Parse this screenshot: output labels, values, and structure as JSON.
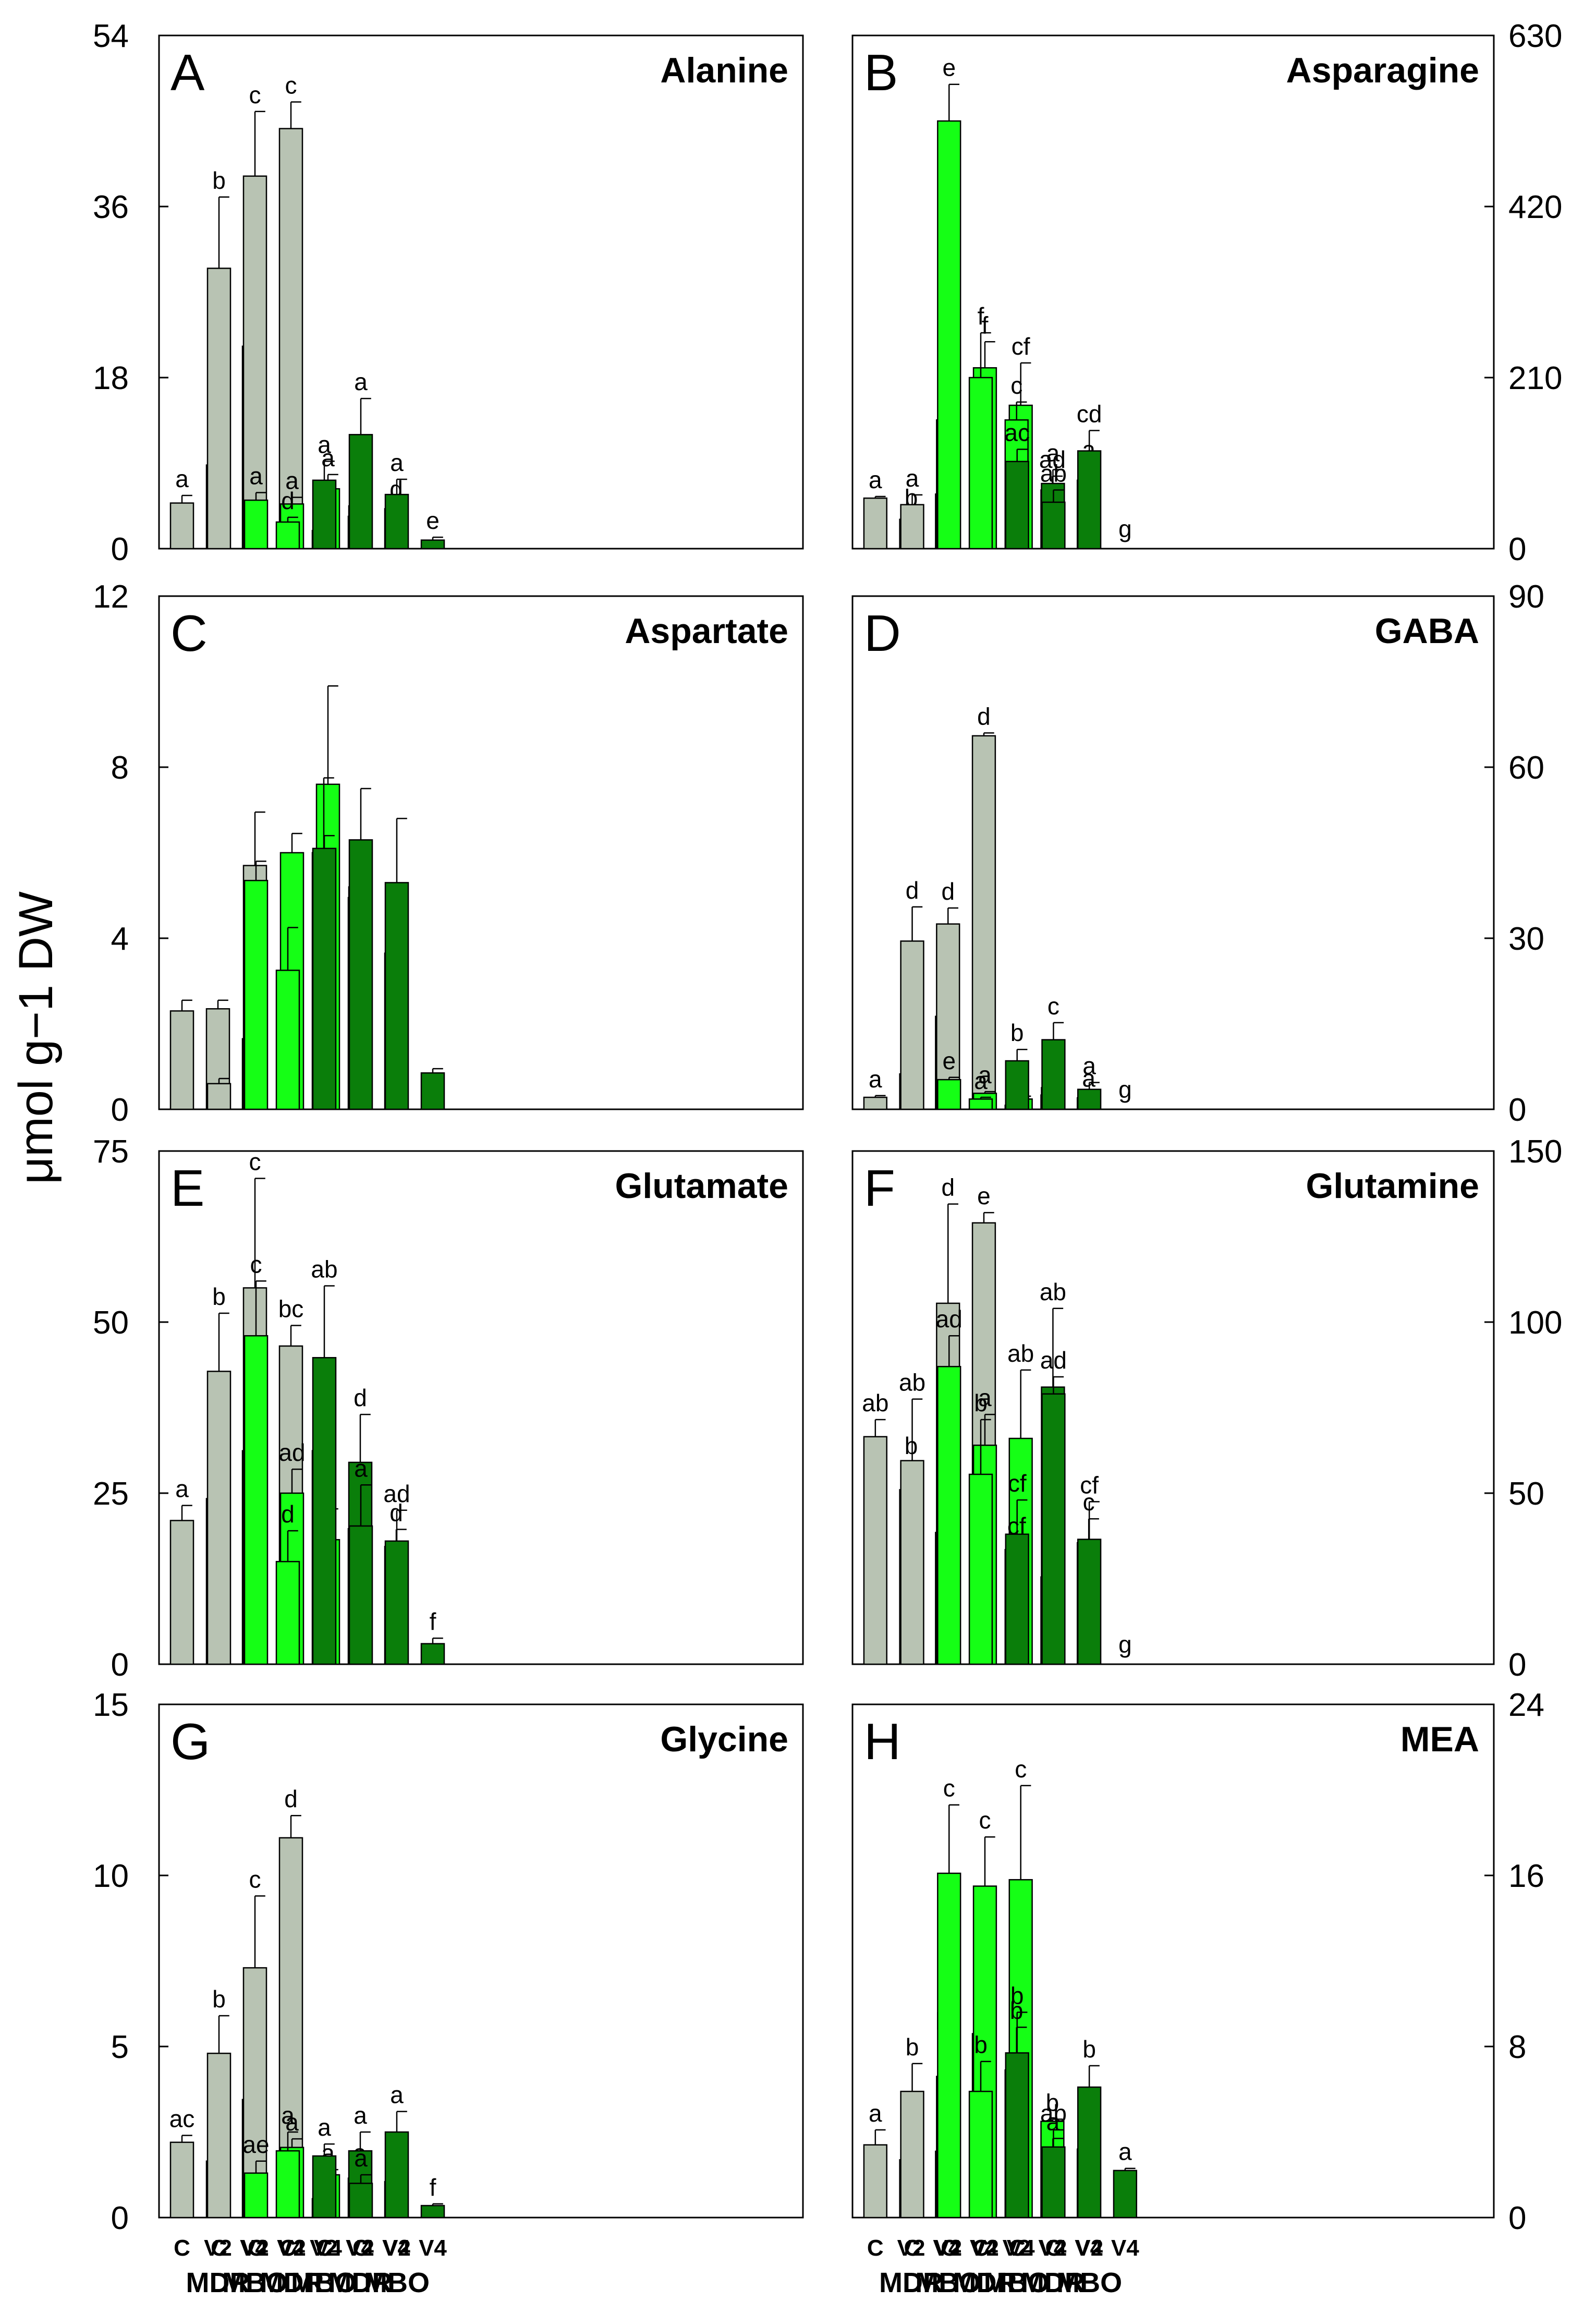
{
  "ylabel": "μmol g−1 DW",
  "colors": {
    "grey": "#b8c3b3",
    "light": "#15ff15",
    "dark": "#0a7e0a"
  },
  "category_groups": [
    {
      "labels": [
        "C",
        "V2",
        "V4"
      ],
      "group": "MDR"
    },
    {
      "labels": [
        "C",
        "V2",
        "V4"
      ],
      "group": "MBO"
    },
    {
      "labels": [
        "C",
        "V2",
        "V4"
      ],
      "group": "MDR"
    },
    {
      "labels": [
        "C",
        "V2",
        "V4"
      ],
      "group": "MBO"
    },
    {
      "labels": [
        "C",
        "V2",
        "V4"
      ],
      "group": "MDR"
    },
    {
      "labels": [
        "C",
        "V2",
        "V4"
      ],
      "group": "MBO"
    }
  ],
  "chart_data": [
    {
      "type": "bar",
      "letter": "A",
      "title": "Alanine",
      "axis": "left",
      "ylim": [
        0,
        54
      ],
      "yticks": [
        "0",
        "18",
        "36",
        "54"
      ],
      "tick_values": [
        0,
        18,
        36,
        54
      ],
      "values": [
        4.8,
        8.8,
        21.3,
        29.5,
        39.2,
        44.2,
        5.1,
        4.7,
        6.3,
        2.8,
        1.9,
        3.4,
        7.2,
        4.5,
        4.2,
        12.0,
        5.7,
        0.9
      ],
      "errors": [
        0.8,
        1.6,
        5.0,
        7.5,
        6.8,
        2.8,
        0.8,
        0.7,
        1.5,
        0.5,
        0.4,
        0.5,
        2.0,
        1.5,
        0.3,
        3.8,
        1.6,
        0.3
      ],
      "letters": [
        "a",
        "a",
        "b",
        "b",
        "c",
        "c",
        "a",
        "a",
        "a",
        "d",
        "d",
        "d",
        "a",
        "a",
        "d",
        "a",
        "a",
        "e"
      ]
    },
    {
      "type": "bar",
      "letter": "B",
      "title": "Asparagine",
      "axis": "right",
      "ylim": [
        0,
        630
      ],
      "yticks": [
        "0",
        "210",
        "420",
        "630"
      ],
      "tick_values": [
        0,
        210,
        420,
        630
      ],
      "values": [
        62,
        36,
        67,
        54,
        158,
        90,
        525,
        222,
        176,
        210,
        158,
        72,
        107,
        80,
        84,
        57,
        120,
        0
      ],
      "errors": [
        2,
        6,
        12,
        12,
        42,
        2,
        45,
        32,
        52,
        55,
        22,
        17,
        15,
        17,
        17,
        15,
        25,
        0
      ],
      "letters": [
        "a",
        "b",
        "a",
        "a",
        "c",
        "d",
        "e",
        "f",
        "cf",
        "f",
        "c",
        "ad",
        "ac",
        "a",
        "a",
        "ab",
        "cd",
        "g"
      ]
    },
    {
      "type": "bar",
      "letter": "C",
      "title": "Aspartate",
      "axis": "left",
      "ylim": [
        0,
        12
      ],
      "yticks": [
        "0",
        "4",
        "8",
        "12"
      ],
      "tick_values": [
        0,
        4,
        8,
        12
      ],
      "values": [
        2.3,
        2.35,
        1.65,
        0.6,
        5.7,
        2.2,
        5.35,
        6.0,
        7.6,
        3.25,
        6.0,
        4.95,
        6.1,
        5.2,
        3.65,
        6.3,
        5.3,
        0.85
      ],
      "errors": [
        0.25,
        0.2,
        0.3,
        0.12,
        1.25,
        0.15,
        0.45,
        0.45,
        2.3,
        1.0,
        1.75,
        0.6,
        0.3,
        0.6,
        0.8,
        1.2,
        1.5,
        0.1
      ],
      "letters": []
    },
    {
      "type": "bar",
      "letter": "D",
      "title": "GABA",
      "axis": "right",
      "ylim": [
        0,
        90
      ],
      "yticks": [
        "0",
        "30",
        "60",
        "90"
      ],
      "tick_values": [
        0,
        30,
        60,
        90
      ],
      "values": [
        2.1,
        6.2,
        16.3,
        29.5,
        32.5,
        65.5,
        5.2,
        2.8,
        1.8,
        1.8,
        0.7,
        2.5,
        8.5,
        3.8,
        2.0,
        12.2,
        3.5,
        0
      ],
      "errors": [
        0.3,
        0.8,
        4.5,
        6.0,
        2.8,
        0.5,
        0.4,
        0.3,
        0.5,
        0.3,
        0.2,
        0.5,
        2.0,
        1.0,
        0.5,
        3.0,
        1.2,
        0
      ],
      "letters": [
        "a",
        "b",
        "c",
        "d",
        "d",
        "d",
        "e",
        "a",
        "a",
        "a",
        "f",
        "a",
        "b",
        "a",
        "a",
        "c",
        "a",
        "g"
      ]
    },
    {
      "type": "bar",
      "letter": "E",
      "title": "Glutamate",
      "axis": "left",
      "ylim": [
        0,
        75
      ],
      "yticks": [
        "0",
        "25",
        "50",
        "75"
      ],
      "tick_values": [
        0,
        25,
        50,
        75
      ],
      "values": [
        21.0,
        24.2,
        31.2,
        42.8,
        55.0,
        46.5,
        48.0,
        25.0,
        18.2,
        15.0,
        31.2,
        19.8,
        44.8,
        29.5,
        17.2,
        20.2,
        18.0,
        3.0
      ],
      "errors": [
        2.2,
        4.0,
        8.0,
        8.5,
        16.0,
        3.0,
        8.0,
        3.5,
        4.5,
        4.5,
        2.5,
        2.0,
        10.5,
        7.0,
        2.5,
        6.0,
        4.5,
        0.8
      ],
      "letters": [
        "a",
        "a",
        "a",
        "b",
        "c",
        "bc",
        "c",
        "ad",
        "d",
        "d",
        "a",
        "a",
        "ab",
        "d",
        "d",
        "a",
        "ad",
        "f"
      ]
    },
    {
      "type": "bar",
      "letter": "F",
      "title": "Glutamine",
      "axis": "right",
      "ylim": [
        0,
        150
      ],
      "yticks": [
        "0",
        "50",
        "100",
        "150"
      ],
      "tick_values": [
        0,
        50,
        100,
        150
      ],
      "values": [
        66.5,
        51.0,
        38.5,
        59.5,
        105.5,
        129.0,
        87.0,
        64.0,
        66.0,
        55.5,
        33.5,
        25.5,
        38.0,
        81.0,
        35.5,
        79.0,
        36.5,
        0
      ],
      "errors": [
        5.0,
        8.0,
        12.0,
        18.0,
        29.0,
        3.0,
        9.0,
        9.0,
        20.0,
        16.0,
        2.0,
        4.0,
        10.0,
        23.0,
        7.0,
        5.0,
        11.0,
        0
      ],
      "letters": [
        "ab",
        "b",
        "c",
        "ab",
        "d",
        "e",
        "ad",
        "a",
        "ab",
        "b",
        "cf",
        "f",
        "cf",
        "ab",
        "c",
        "ad",
        "cf",
        "g"
      ]
    },
    {
      "type": "bar",
      "letter": "G",
      "title": "Glycine",
      "axis": "left",
      "ylim": [
        0,
        15
      ],
      "yticks": [
        "0",
        "5",
        "10",
        "15"
      ],
      "tick_values": [
        0,
        5,
        10,
        15
      ],
      "values": [
        2.2,
        1.65,
        3.45,
        4.8,
        7.3,
        11.1,
        1.3,
        2.05,
        1.25,
        1.95,
        0.55,
        1.15,
        1.8,
        1.95,
        1.05,
        1.0,
        2.5,
        0.35
      ],
      "errors": [
        0.2,
        0.3,
        0.95,
        1.1,
        2.1,
        0.65,
        0.35,
        0.25,
        0.15,
        0.55,
        0.2,
        0.25,
        0.35,
        0.55,
        0.15,
        0.25,
        0.6,
        0.05
      ],
      "letters": [
        "ac",
        "a",
        "b",
        "b",
        "c",
        "d",
        "ae",
        "a",
        "a",
        "a",
        "e",
        "a",
        "a",
        "a",
        "a",
        "a",
        "a",
        "f"
      ]
    },
    {
      "type": "bar",
      "letter": "H",
      "title": "MEA",
      "axis": "right",
      "ylim": [
        0,
        24
      ],
      "yticks": [
        "0",
        "8",
        "16",
        "24"
      ],
      "tick_values": [
        0,
        8,
        16,
        24
      ],
      "values": [
        3.4,
        2.7,
        3.1,
        5.9,
        6.6,
        8.6,
        16.1,
        15.5,
        15.8,
        5.9,
        6.9,
        4.5,
        7.7,
        2.9,
        3.2,
        3.3,
        6.1,
        2.2
      ],
      "errors": [
        0.7,
        0.7,
        0.9,
        1.3,
        1.8,
        0.3,
        3.2,
        2.3,
        4.4,
        1.4,
        2.0,
        0.1,
        1.9,
        0.8,
        0.5,
        0.8,
        1.0,
        0.1
      ],
      "letters": [
        "a",
        "a",
        "a",
        "b",
        "bc",
        "b",
        "c",
        "c",
        "c",
        "b",
        "b",
        "b",
        "b",
        "a",
        "a",
        "ab",
        "b",
        "a"
      ]
    }
  ]
}
